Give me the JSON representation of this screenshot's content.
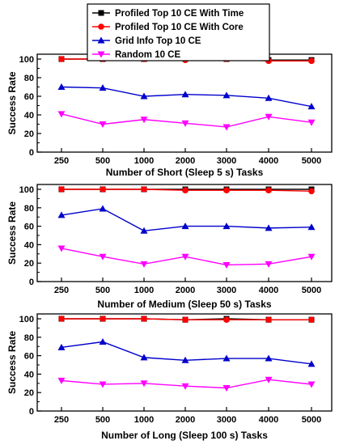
{
  "legend": {
    "placement": "top-center",
    "entries": [
      {
        "name": "Profiled Top 10 CE With Time",
        "color": "#000000",
        "marker": "square"
      },
      {
        "name": "Profiled Top 10 CE With Core",
        "color": "#ff0000",
        "marker": "circle"
      },
      {
        "name": "Grid Info Top 10 CE",
        "color": "#0000cc",
        "marker": "triangle-up"
      },
      {
        "name": "Random 10 CE",
        "color": "#ff00ff",
        "marker": "triangle-down"
      }
    ]
  },
  "chart_data": [
    {
      "type": "line",
      "categories": [
        "250",
        "500",
        "1000",
        "2000",
        "3000",
        "4000",
        "5000"
      ],
      "xlabel": "Number of Short (Sleep 5 s) Tasks",
      "ylabel": "Success Rate",
      "ylim": [
        0,
        100
      ],
      "yticks": [
        "0",
        "20",
        "40",
        "60",
        "80",
        "100"
      ],
      "grid": false,
      "series": [
        {
          "name": "Profiled Top 10 CE With Time",
          "values": [
            100,
            100,
            100,
            100,
            100,
            99,
            99
          ]
        },
        {
          "name": "Profiled Top 10 CE With Core",
          "values": [
            100,
            100,
            100,
            99,
            100,
            98,
            98
          ]
        },
        {
          "name": "Grid Info Top 10 CE",
          "values": [
            70,
            69,
            60,
            62,
            61,
            58,
            49
          ]
        },
        {
          "name": "Random 10 CE",
          "values": [
            41,
            30,
            35,
            31,
            27,
            38,
            32
          ]
        }
      ]
    },
    {
      "type": "line",
      "categories": [
        "250",
        "500",
        "1000",
        "2000",
        "3000",
        "4000",
        "5000"
      ],
      "xlabel": "Number of Medium (Sleep 50 s) Tasks",
      "ylabel": "Success Rate",
      "ylim": [
        0,
        100
      ],
      "yticks": [
        "0",
        "20",
        "40",
        "60",
        "80",
        "100"
      ],
      "grid": false,
      "series": [
        {
          "name": "Profiled Top 10 CE With Time",
          "values": [
            100,
            100,
            100,
            100,
            100,
            100,
            100
          ]
        },
        {
          "name": "Profiled Top 10 CE With Core",
          "values": [
            100,
            100,
            100,
            99,
            99,
            99,
            98
          ]
        },
        {
          "name": "Grid Info Top 10 CE",
          "values": [
            72,
            79,
            55,
            60,
            60,
            58,
            59
          ]
        },
        {
          "name": "Random 10 CE",
          "values": [
            36,
            27,
            19,
            27,
            18,
            19,
            27
          ]
        }
      ]
    },
    {
      "type": "line",
      "categories": [
        "250",
        "500",
        "1000",
        "2000",
        "3000",
        "4000",
        "5000"
      ],
      "xlabel": "Number of Long (Sleep 100 s) Tasks",
      "ylabel": "Success Rate",
      "ylim": [
        0,
        100
      ],
      "yticks": [
        "0",
        "20",
        "40",
        "60",
        "80",
        "100"
      ],
      "grid": false,
      "series": [
        {
          "name": "Profiled Top 10 CE With Time",
          "values": [
            100,
            100,
            100,
            99,
            100,
            99,
            99
          ]
        },
        {
          "name": "Profiled Top 10 CE With Core",
          "values": [
            100,
            100,
            100,
            99,
            99,
            99,
            99
          ]
        },
        {
          "name": "Grid Info Top 10 CE",
          "values": [
            69,
            75,
            58,
            55,
            57,
            57,
            51
          ]
        },
        {
          "name": "Random 10 CE",
          "values": [
            33,
            29,
            30,
            27,
            25,
            34,
            29
          ]
        }
      ]
    }
  ]
}
